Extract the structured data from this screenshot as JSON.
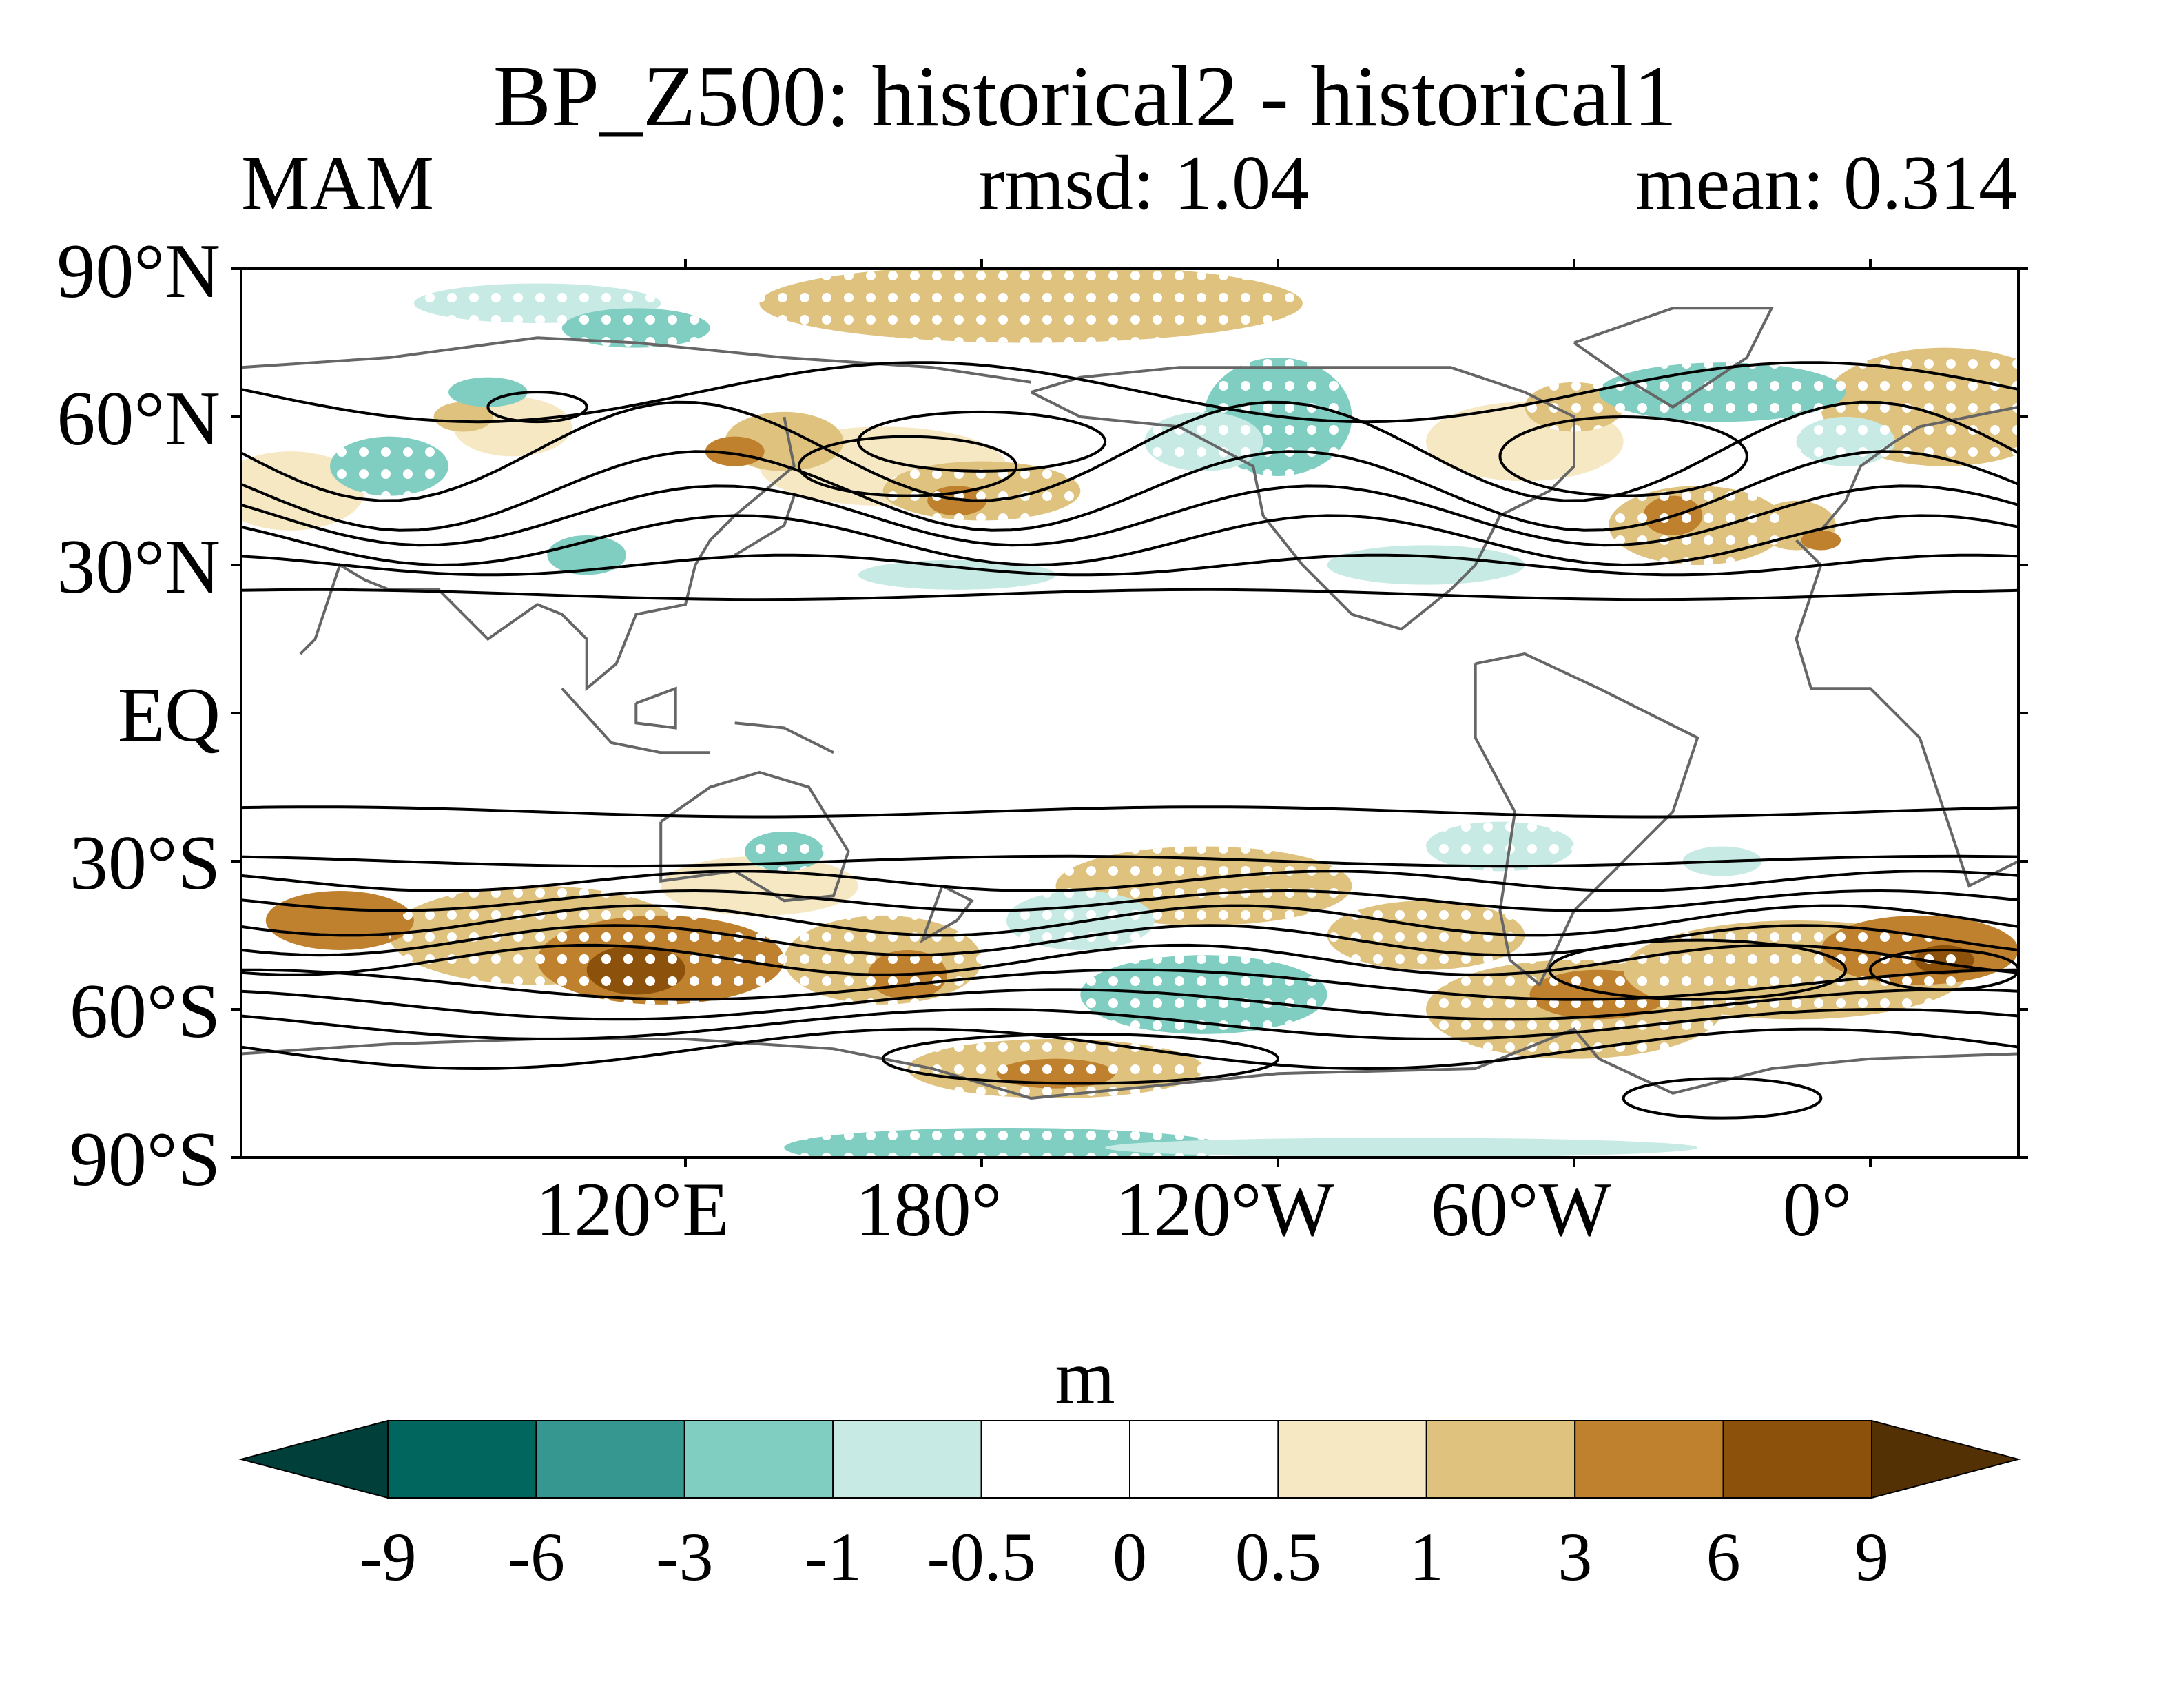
{
  "header": {
    "title": "BP_Z500: historical2 - historical1",
    "season": "MAM",
    "rmsd": "rmsd: 1.04",
    "mean": "mean: 0.314"
  },
  "map": {
    "projection": "cylindrical equidistant, centered on 150°W-ish Pacific",
    "lon_range": [
      30,
      390
    ],
    "lat_range": [
      -90,
      90
    ],
    "lat_labels": [
      "90°N",
      "60°N",
      "30°N",
      "EQ",
      "30°S",
      "60°S",
      "90°S"
    ],
    "lon_labels": [
      "120°E",
      "180°",
      "120°W",
      "60°W",
      "0°"
    ],
    "colors": {
      "neg9": "#01403a",
      "neg6": "#01665e",
      "neg3": "#35978f",
      "neg1": "#80cdc1",
      "neg05": "#c7eae5",
      "zero": "#ffffff",
      "pos05": "#f6e8c3",
      "pos1": "#dfc27d",
      "pos3": "#bf812d",
      "pos6": "#8c510a",
      "pos9": "#543005",
      "coast": "#666666",
      "contour": "#000000"
    },
    "stippling": "white dots indicate significance"
  },
  "colorbar": {
    "units": "m",
    "levels": [
      "-9",
      "-6",
      "-3",
      "-1",
      "-0.5",
      "0",
      "0.5",
      "1",
      "3",
      "6",
      "9"
    ],
    "colors": [
      "#01403a",
      "#01665e",
      "#35978f",
      "#80cdc1",
      "#c7eae5",
      "#ffffff",
      "#ffffff",
      "#f6e8c3",
      "#dfc27d",
      "#bf812d",
      "#8c510a",
      "#543005"
    ]
  }
}
